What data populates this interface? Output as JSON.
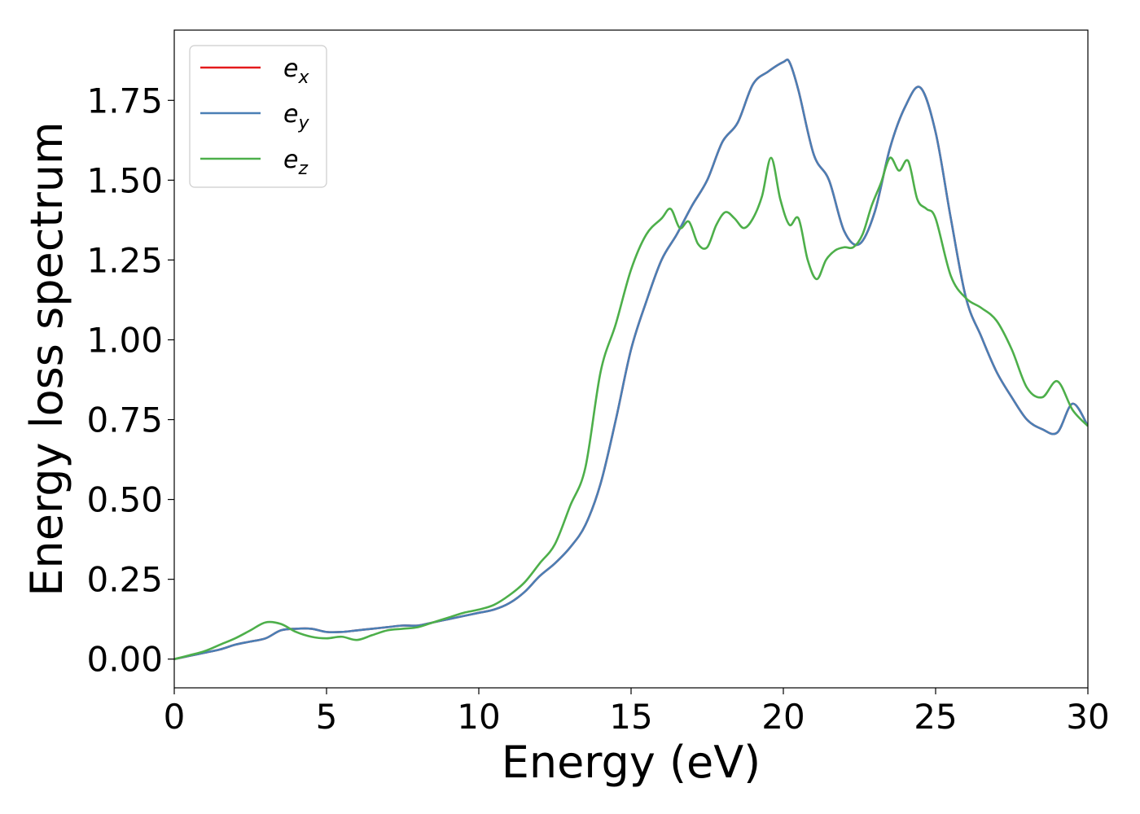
{
  "chart_data": {
    "type": "line",
    "xlabel": "Energy (eV)",
    "ylabel": "Energy loss spectrum",
    "xlim": [
      0,
      30
    ],
    "ylim": [
      -0.09,
      1.97
    ],
    "xticks": [
      0,
      5,
      10,
      15,
      20,
      25,
      30
    ],
    "xtick_labels": [
      "0",
      "5",
      "10",
      "15",
      "20",
      "25",
      "30"
    ],
    "yticks": [
      0,
      0.25,
      0.5,
      0.75,
      1.0,
      1.25,
      1.5,
      1.75
    ],
    "ytick_labels": [
      "0.00",
      "0.25",
      "0.50",
      "0.75",
      "1.00",
      "1.25",
      "1.50",
      "1.75"
    ],
    "grid": false,
    "legend_position": "top-left",
    "series": [
      {
        "name": "e_x",
        "legend_main": "e",
        "legend_sub": "x",
        "color": "#e41a1c",
        "x": [
          0,
          0.5,
          1,
          1.5,
          2,
          2.5,
          3,
          3.5,
          4,
          4.5,
          5,
          5.5,
          6,
          6.5,
          7,
          7.5,
          8,
          8.5,
          9,
          9.5,
          10,
          10.5,
          11,
          11.5,
          12,
          12.5,
          13,
          13.5,
          14,
          14.5,
          15,
          15.5,
          16,
          16.5,
          17,
          17.5,
          18,
          18.5,
          19,
          19.5,
          20,
          20.2,
          20.5,
          21,
          21.5,
          22,
          22.5,
          23,
          23.5,
          24,
          24.5,
          25,
          25.5,
          26,
          26.5,
          27,
          27.5,
          28,
          28.5,
          29,
          29.5,
          30
        ],
        "y": [
          0,
          0.01,
          0.02,
          0.03,
          0.045,
          0.055,
          0.065,
          0.09,
          0.095,
          0.095,
          0.085,
          0.085,
          0.09,
          0.095,
          0.1,
          0.105,
          0.105,
          0.115,
          0.125,
          0.135,
          0.145,
          0.155,
          0.175,
          0.21,
          0.26,
          0.3,
          0.35,
          0.42,
          0.55,
          0.75,
          0.97,
          1.12,
          1.25,
          1.33,
          1.42,
          1.5,
          1.62,
          1.68,
          1.8,
          1.84,
          1.87,
          1.87,
          1.78,
          1.58,
          1.5,
          1.34,
          1.3,
          1.4,
          1.6,
          1.73,
          1.79,
          1.65,
          1.38,
          1.13,
          1.01,
          0.9,
          0.82,
          0.75,
          0.72,
          0.71,
          0.8,
          0.73
        ]
      },
      {
        "name": "e_y",
        "legend_main": "e",
        "legend_sub": "y",
        "color": "#4a7fb5",
        "x": [
          0,
          0.5,
          1,
          1.5,
          2,
          2.5,
          3,
          3.5,
          4,
          4.5,
          5,
          5.5,
          6,
          6.5,
          7,
          7.5,
          8,
          8.5,
          9,
          9.5,
          10,
          10.5,
          11,
          11.5,
          12,
          12.5,
          13,
          13.5,
          14,
          14.5,
          15,
          15.5,
          16,
          16.5,
          17,
          17.5,
          18,
          18.5,
          19,
          19.5,
          20,
          20.2,
          20.5,
          21,
          21.5,
          22,
          22.5,
          23,
          23.5,
          24,
          24.5,
          25,
          25.5,
          26,
          26.5,
          27,
          27.5,
          28,
          28.5,
          29,
          29.5,
          30
        ],
        "y": [
          0,
          0.01,
          0.02,
          0.03,
          0.045,
          0.055,
          0.065,
          0.09,
          0.095,
          0.095,
          0.085,
          0.085,
          0.09,
          0.095,
          0.1,
          0.105,
          0.105,
          0.115,
          0.125,
          0.135,
          0.145,
          0.155,
          0.175,
          0.21,
          0.26,
          0.3,
          0.35,
          0.42,
          0.55,
          0.75,
          0.97,
          1.12,
          1.25,
          1.33,
          1.42,
          1.5,
          1.62,
          1.68,
          1.8,
          1.84,
          1.87,
          1.87,
          1.78,
          1.58,
          1.5,
          1.34,
          1.3,
          1.4,
          1.6,
          1.73,
          1.79,
          1.65,
          1.38,
          1.13,
          1.01,
          0.9,
          0.82,
          0.75,
          0.72,
          0.71,
          0.8,
          0.73
        ]
      },
      {
        "name": "e_z",
        "legend_main": "e",
        "legend_sub": "z",
        "color": "#4daf4a",
        "x": [
          0,
          0.5,
          1,
          1.5,
          2,
          2.5,
          3,
          3.5,
          4,
          4.5,
          5,
          5.5,
          6,
          6.5,
          7,
          7.5,
          8,
          8.5,
          9,
          9.5,
          10,
          10.5,
          11,
          11.5,
          12,
          12.5,
          13,
          13.5,
          14,
          14.5,
          15,
          15.5,
          16,
          16.3,
          16.6,
          16.9,
          17.2,
          17.5,
          17.8,
          18.1,
          18.4,
          18.7,
          19,
          19.3,
          19.6,
          19.9,
          20.2,
          20.5,
          20.8,
          21.1,
          21.4,
          21.7,
          22,
          22.3,
          22.6,
          22.9,
          23.2,
          23.5,
          23.8,
          24.1,
          24.4,
          24.7,
          25,
          25.5,
          26,
          26.5,
          27,
          27.5,
          28,
          28.5,
          29,
          29.5,
          30
        ],
        "y": [
          0,
          0.012,
          0.025,
          0.045,
          0.065,
          0.09,
          0.115,
          0.11,
          0.085,
          0.07,
          0.065,
          0.07,
          0.06,
          0.075,
          0.09,
          0.095,
          0.1,
          0.115,
          0.13,
          0.145,
          0.155,
          0.17,
          0.2,
          0.24,
          0.3,
          0.36,
          0.48,
          0.6,
          0.9,
          1.05,
          1.22,
          1.33,
          1.38,
          1.41,
          1.35,
          1.37,
          1.3,
          1.29,
          1.36,
          1.4,
          1.38,
          1.35,
          1.38,
          1.45,
          1.57,
          1.44,
          1.36,
          1.38,
          1.25,
          1.19,
          1.25,
          1.28,
          1.29,
          1.29,
          1.33,
          1.42,
          1.49,
          1.57,
          1.53,
          1.56,
          1.44,
          1.41,
          1.38,
          1.2,
          1.13,
          1.1,
          1.06,
          0.97,
          0.85,
          0.82,
          0.87,
          0.78,
          0.73
        ]
      }
    ]
  }
}
